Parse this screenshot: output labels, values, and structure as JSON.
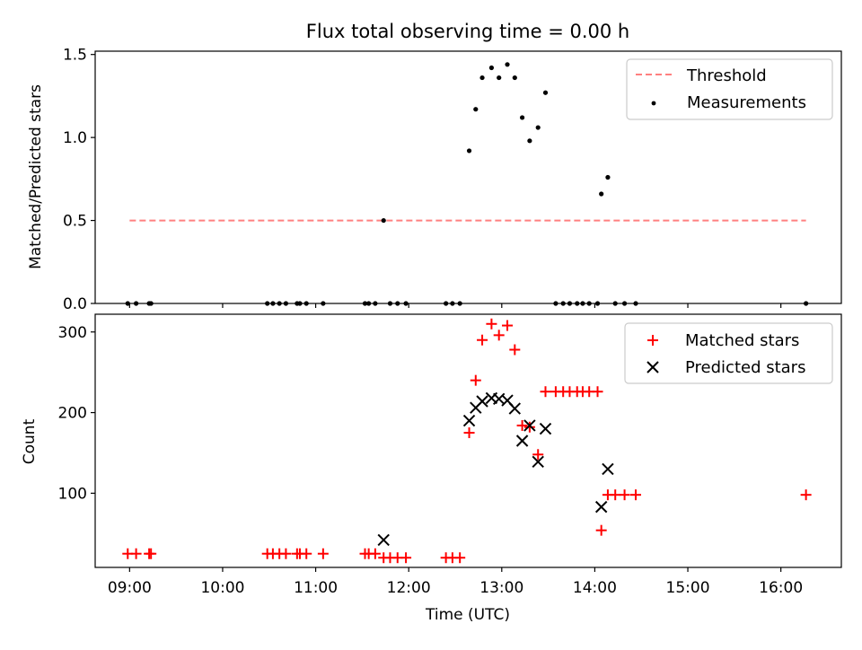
{
  "figure_title": "Flux total observing time = 0.00 h",
  "colors": {
    "threshold": "#ff8080",
    "matched": "#ff0000",
    "predicted": "#000000",
    "measurements": "#000000"
  },
  "chart_data": [
    {
      "type": "scatter",
      "ylabel": "Matched/Predicted stars",
      "ylim": [
        0,
        1.52
      ],
      "yticks": [
        0,
        0.5,
        1.0,
        1.5
      ],
      "ytick_labels": [
        "0.0",
        "0.5",
        "1.0",
        "1.5"
      ],
      "xlim": [
        8.63,
        16.65
      ],
      "xticks": [
        9,
        10,
        11,
        12,
        13,
        14,
        15,
        16
      ],
      "legend": {
        "placement": "top-right",
        "entries": [
          "Threshold",
          "Measurements"
        ]
      },
      "threshold": {
        "name": "Threshold",
        "y": 0.5,
        "x": [
          9.0,
          16.27
        ],
        "style": "dashed"
      },
      "series": [
        {
          "name": "Measurements",
          "marker": "dot",
          "x": [
            8.98,
            9.07,
            9.21,
            9.23,
            10.48,
            10.54,
            10.61,
            10.68,
            10.8,
            10.83,
            10.9,
            11.08,
            11.53,
            11.57,
            11.64,
            11.73,
            11.8,
            11.88,
            11.97,
            12.4,
            12.47,
            12.55,
            12.65,
            12.72,
            12.79,
            12.89,
            12.97,
            13.06,
            13.14,
            13.22,
            13.3,
            13.39,
            13.47,
            13.58,
            13.66,
            13.73,
            13.81,
            13.87,
            13.94,
            14.03,
            14.07,
            14.14,
            14.22,
            14.32,
            14.44,
            16.27
          ],
          "values": [
            0,
            0,
            0,
            0,
            0,
            0,
            0,
            0,
            0,
            0,
            0,
            0,
            0,
            0,
            0,
            0.5,
            0,
            0,
            0,
            0,
            0,
            0,
            0.92,
            1.17,
            1.36,
            1.42,
            1.36,
            1.44,
            1.36,
            1.12,
            0.98,
            1.06,
            1.27,
            0,
            0,
            0,
            0,
            0,
            0,
            0,
            0.66,
            0.76,
            0,
            0,
            0,
            0
          ]
        }
      ]
    },
    {
      "type": "scatter",
      "xlabel": "Time (UTC)",
      "ylabel": "Count",
      "ylim": [
        8,
        322
      ],
      "yticks": [
        100,
        200,
        300
      ],
      "ytick_labels": [
        "100",
        "200",
        "300"
      ],
      "xlim": [
        8.63,
        16.65
      ],
      "xticks": [
        9,
        10,
        11,
        12,
        13,
        14,
        15,
        16
      ],
      "xtick_labels": [
        "09:00",
        "10:00",
        "11:00",
        "12:00",
        "13:00",
        "14:00",
        "15:00",
        "16:00"
      ],
      "legend": {
        "placement": "top-right",
        "entries": [
          "Matched stars",
          "Predicted stars"
        ]
      },
      "series": [
        {
          "name": "Matched stars",
          "marker": "+",
          "x": [
            8.98,
            9.07,
            9.21,
            9.23,
            10.48,
            10.54,
            10.61,
            10.68,
            10.8,
            10.83,
            10.9,
            11.08,
            11.53,
            11.57,
            11.64,
            11.73,
            11.8,
            11.88,
            11.97,
            12.4,
            12.47,
            12.55,
            12.65,
            12.72,
            12.79,
            12.89,
            12.97,
            13.06,
            13.14,
            13.22,
            13.3,
            13.39,
            13.47,
            13.58,
            13.66,
            13.73,
            13.81,
            13.87,
            13.94,
            14.03,
            14.07,
            14.14,
            14.22,
            14.32,
            14.44,
            16.27
          ],
          "values": [
            25,
            25,
            25,
            25,
            25,
            25,
            25,
            25,
            25,
            25,
            25,
            25,
            25,
            25,
            25,
            20,
            20,
            20,
            20,
            20,
            20,
            20,
            175,
            240,
            290,
            310,
            296,
            308,
            278,
            184,
            182,
            148,
            226,
            226,
            226,
            226,
            226,
            226,
            226,
            226,
            54,
            98,
            98,
            98,
            98,
            98
          ]
        },
        {
          "name": "Predicted stars",
          "marker": "x",
          "x": [
            11.73,
            12.65,
            12.72,
            12.79,
            12.89,
            12.97,
            13.06,
            13.14,
            13.22,
            13.3,
            13.39,
            13.47,
            14.07,
            14.14
          ],
          "values": [
            42,
            190,
            206,
            214,
            218,
            217,
            215,
            205,
            165,
            184,
            139,
            180,
            83,
            130
          ]
        }
      ]
    }
  ]
}
